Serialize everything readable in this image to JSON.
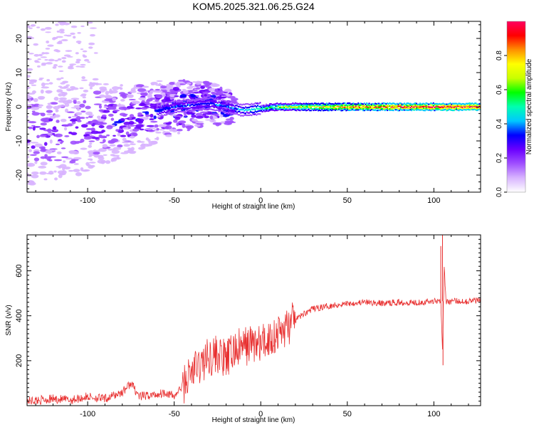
{
  "title": "KOM5.2025.321.06.25.G24",
  "chart_data": [
    {
      "type": "heatmap",
      "title": "KOM5.2025.321.06.25.G24",
      "xlabel": "Height of straight line (km)",
      "ylabel": "Frequency (Hz)",
      "xlim": [
        -135,
        127
      ],
      "ylim": [
        -25,
        25
      ],
      "x_ticks": [
        -100,
        -50,
        0,
        50,
        100
      ],
      "y_ticks": [
        -20,
        -10,
        0,
        10,
        20
      ],
      "x_tick_labels": [
        "-100",
        "-50",
        "0",
        "50",
        "100"
      ],
      "y_tick_labels": [
        "-20",
        "-10",
        "0",
        "10",
        "20"
      ],
      "colorbar": {
        "label": "Normalized spectral amplitude",
        "range": [
          0,
          1
        ],
        "ticks": [
          0.0,
          0.2,
          0.4,
          0.6,
          0.8
        ],
        "tick_labels": [
          "0.0",
          "0.2",
          "0.4",
          "0.6",
          "0.8"
        ],
        "colors": [
          "#ffffff",
          "#d8b4ff",
          "#a050ff",
          "#6a00ff",
          "#0000ff",
          "#00c8ff",
          "#00ffb0",
          "#00ff00",
          "#c8ff00",
          "#ffff00",
          "#ff9000",
          "#ff0000",
          "#ff0060"
        ]
      },
      "ridge_frequency_hz": 0,
      "description_points": [
        {
          "x": -120,
          "y": -8,
          "amp": 0.25
        },
        {
          "x": -100,
          "y": -6,
          "amp": 0.25
        },
        {
          "x": -80,
          "y": -4,
          "amp": 0.3
        },
        {
          "x": -65,
          "y": -2,
          "amp": 0.3
        },
        {
          "x": -50,
          "y": 0,
          "amp": 0.35
        },
        {
          "x": -30,
          "y": 1,
          "amp": 0.35
        },
        {
          "x": -10,
          "y": -1,
          "amp": 0.4
        },
        {
          "x": 10,
          "y": 0,
          "amp": 0.6
        },
        {
          "x": 40,
          "y": 0,
          "amp": 0.8
        },
        {
          "x": 80,
          "y": 0,
          "amp": 0.95
        },
        {
          "x": 120,
          "y": 0,
          "amp": 1.0
        }
      ]
    },
    {
      "type": "line",
      "xlabel": "Height of straight line (km)",
      "ylabel": "SNR (v/v)",
      "xlim": [
        -135,
        127
      ],
      "ylim": [
        0,
        760
      ],
      "x_ticks": [
        -100,
        -50,
        0,
        50,
        100
      ],
      "y_ticks": [
        200,
        400,
        600
      ],
      "x_tick_labels": [
        "-100",
        "-50",
        "0",
        "50",
        "100"
      ],
      "y_tick_labels": [
        "200",
        "400",
        "600"
      ],
      "line_color": "#e83030",
      "series": [
        {
          "name": "SNR",
          "x": [
            -135,
            -120,
            -110,
            -100,
            -90,
            -80,
            -75,
            -70,
            -60,
            -55,
            -50,
            -45,
            -40,
            -35,
            -30,
            -25,
            -20,
            -15,
            -10,
            -5,
            0,
            5,
            10,
            15,
            20,
            25,
            30,
            40,
            50,
            60,
            70,
            80,
            90,
            100,
            104,
            105,
            106,
            107,
            110,
            120,
            127
          ],
          "y": [
            20,
            30,
            25,
            40,
            30,
            60,
            100,
            40,
            50,
            60,
            40,
            90,
            150,
            180,
            220,
            230,
            200,
            250,
            260,
            280,
            270,
            300,
            320,
            350,
            380,
            410,
            430,
            445,
            455,
            460,
            455,
            460,
            460,
            465,
            470,
            250,
            620,
            460,
            465,
            465,
            470
          ]
        }
      ],
      "spikes": [
        {
          "x": 104,
          "y": 710
        },
        {
          "x": 105,
          "y": 760
        },
        {
          "x": 105.3,
          "y": 180
        }
      ]
    }
  ]
}
